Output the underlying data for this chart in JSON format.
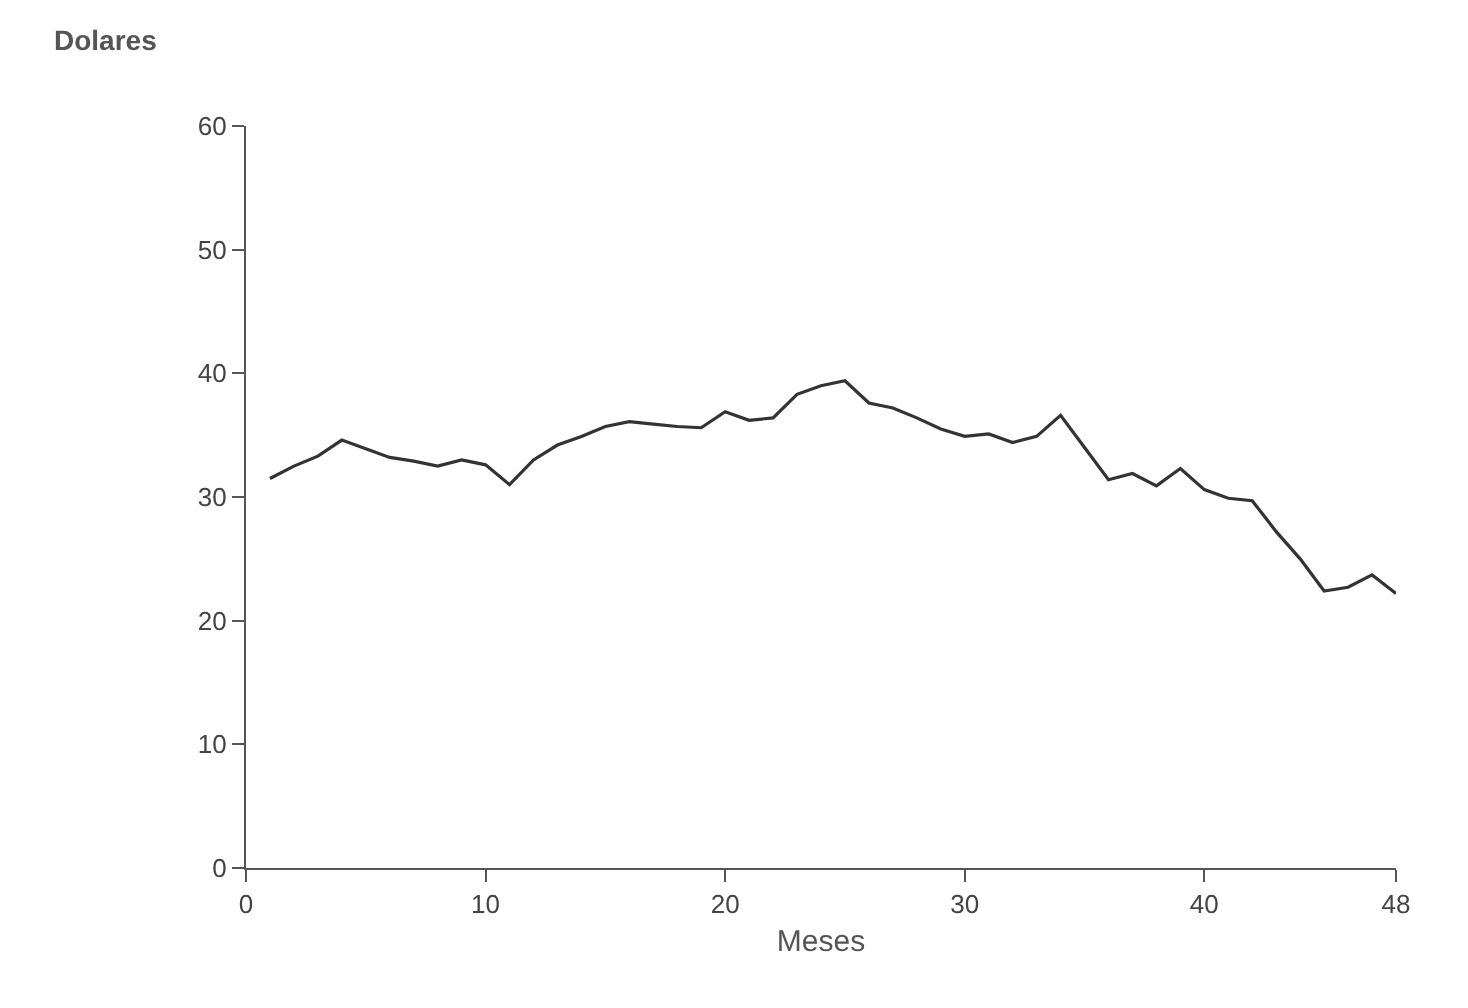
{
  "chart_data": {
    "type": "line",
    "xlabel": "Meses",
    "ylabel": "Dolares",
    "x": [
      1,
      2,
      3,
      4,
      5,
      6,
      7,
      8,
      9,
      10,
      11,
      12,
      13,
      14,
      15,
      16,
      17,
      18,
      19,
      20,
      21,
      22,
      23,
      24,
      25,
      26,
      27,
      28,
      29,
      30,
      31,
      32,
      33,
      34,
      35,
      36,
      37,
      38,
      39,
      40,
      41,
      42,
      43,
      44,
      45,
      46,
      47,
      48
    ],
    "series": [
      {
        "color": "#333333",
        "values": [
          31.5,
          32.5,
          33.3,
          34.6,
          33.9,
          33.2,
          32.9,
          32.5,
          33.0,
          32.6,
          31.0,
          33.0,
          34.2,
          34.9,
          35.7,
          36.1,
          35.9,
          35.7,
          35.6,
          36.9,
          36.2,
          36.4,
          38.3,
          39.0,
          39.4,
          37.6,
          37.2,
          36.4,
          35.5,
          34.9,
          35.1,
          34.4,
          34.9,
          36.6,
          34.0,
          31.4,
          31.9,
          30.9,
          32.3,
          30.6,
          29.9,
          29.7,
          27.2,
          25.0,
          22.4,
          22.7,
          23.7,
          22.2
        ]
      }
    ],
    "xlim": [
      0,
      48
    ],
    "xticks": [
      0,
      10,
      20,
      30,
      40,
      48
    ],
    "ylim": [
      0,
      60
    ],
    "yticks": [
      0,
      10,
      20,
      30,
      40,
      50,
      60
    ],
    "marker": "none",
    "line_style": "solid"
  }
}
